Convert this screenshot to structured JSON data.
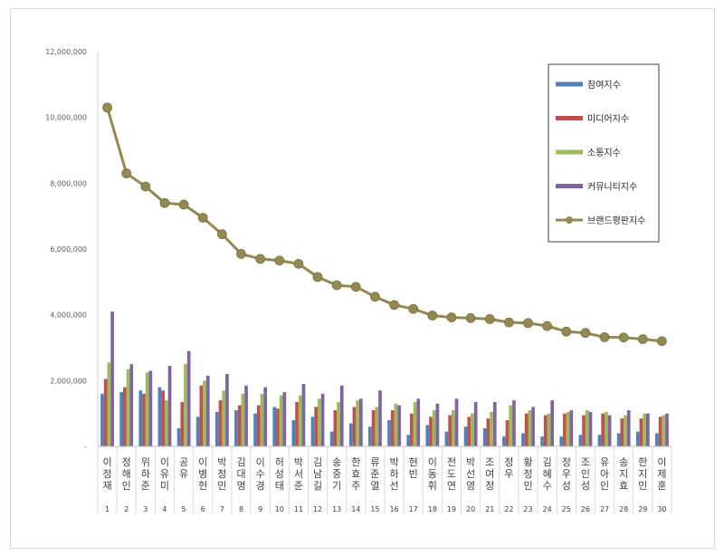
{
  "chart_data": {
    "type": "bar",
    "combo": "bars-with-line",
    "ylim": [
      0,
      12000000
    ],
    "yticks": [
      "-",
      "2,000,000",
      "4,000,000",
      "6,000,000",
      "8,000,000",
      "10,000,000",
      "12,000,000"
    ],
    "grid": false,
    "legend_position": "top-right",
    "categories": [
      "이정재",
      "정해인",
      "위하준",
      "이유미",
      "공유",
      "이병헌",
      "박정민",
      "김대명",
      "이수경",
      "허성태",
      "박서준",
      "김남길",
      "송중기",
      "한효주",
      "류준열",
      "박하선",
      "현빈",
      "이동휘",
      "전도연",
      "박선영",
      "조여정",
      "정우",
      "황정민",
      "김혜수",
      "정우성",
      "조인성",
      "유아인",
      "송지효",
      "한지민",
      "이제훈"
    ],
    "ranks": [
      "1",
      "2",
      "3",
      "4",
      "5",
      "6",
      "7",
      "8",
      "9",
      "10",
      "11",
      "12",
      "13",
      "14",
      "15",
      "16",
      "17",
      "18",
      "19",
      "20",
      "21",
      "22",
      "23",
      "24",
      "25",
      "26",
      "27",
      "28",
      "29",
      "30"
    ],
    "series": [
      {
        "name": "참여지수",
        "color": "#4f81bd",
        "values": [
          1600000,
          1650000,
          1700000,
          1800000,
          550000,
          900000,
          1050000,
          1100000,
          1000000,
          1200000,
          800000,
          900000,
          450000,
          700000,
          600000,
          800000,
          350000,
          650000,
          450000,
          600000,
          550000,
          300000,
          400000,
          300000,
          300000,
          350000,
          350000,
          400000,
          450000,
          400000
        ]
      },
      {
        "name": "미디어지수",
        "color": "#c0504d",
        "values": [
          2050000,
          1800000,
          1600000,
          1700000,
          1350000,
          1850000,
          1400000,
          1250000,
          1250000,
          1150000,
          1350000,
          1200000,
          1100000,
          1200000,
          1100000,
          1100000,
          1000000,
          900000,
          950000,
          900000,
          850000,
          800000,
          1000000,
          950000,
          1000000,
          950000,
          1000000,
          850000,
          850000,
          900000
        ]
      },
      {
        "name": "소통지수",
        "color": "#9bbb59",
        "values": [
          2550000,
          2350000,
          2250000,
          1400000,
          2500000,
          2000000,
          1700000,
          1600000,
          1600000,
          1550000,
          1550000,
          1450000,
          1350000,
          1400000,
          1200000,
          1300000,
          1350000,
          1100000,
          1100000,
          1000000,
          1050000,
          1250000,
          1100000,
          1000000,
          1050000,
          1100000,
          1050000,
          950000,
          1000000,
          950000
        ]
      },
      {
        "name": "커뮤니티지수",
        "color": "#8064a2",
        "values": [
          4100000,
          2500000,
          2300000,
          2450000,
          2900000,
          2150000,
          2200000,
          1850000,
          1800000,
          1650000,
          1900000,
          1600000,
          1850000,
          1450000,
          1700000,
          1250000,
          1450000,
          1300000,
          1450000,
          1350000,
          1350000,
          1400000,
          1200000,
          1400000,
          1100000,
          1050000,
          950000,
          1100000,
          1000000,
          1000000
        ]
      },
      {
        "name": "브랜드평판지수",
        "color": "#938953",
        "kind": "line",
        "values": [
          10300000,
          8300000,
          7900000,
          7400000,
          7350000,
          6950000,
          6450000,
          5850000,
          5700000,
          5650000,
          5550000,
          5150000,
          4900000,
          4850000,
          4550000,
          4300000,
          4180000,
          3980000,
          3920000,
          3900000,
          3870000,
          3770000,
          3750000,
          3660000,
          3490000,
          3450000,
          3320000,
          3310000,
          3260000,
          3200000
        ]
      }
    ]
  }
}
